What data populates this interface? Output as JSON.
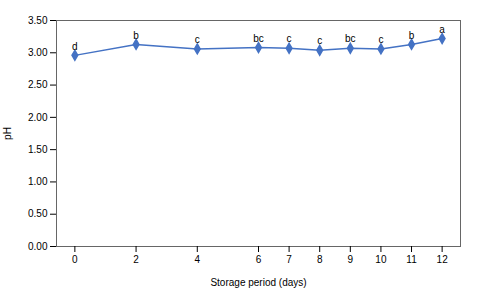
{
  "chart_data": {
    "type": "line",
    "x": [
      0,
      2,
      4,
      6,
      7,
      8,
      9,
      10,
      11,
      12
    ],
    "values": [
      2.96,
      3.13,
      3.06,
      3.08,
      3.07,
      3.04,
      3.07,
      3.06,
      3.13,
      3.22
    ],
    "annotations": [
      "d",
      "b",
      "c",
      "bc",
      "c",
      "c",
      "bc",
      "c",
      "b",
      "a"
    ],
    "xlabel": "Storage period (days)",
    "ylabel": "pH",
    "xlim": [
      -0.6,
      12.6
    ],
    "xticks": [
      0,
      2,
      4,
      6,
      7,
      8,
      9,
      10,
      11,
      12
    ],
    "ylim": [
      0.0,
      3.5
    ],
    "yticks": [
      {
        "value": 0.0,
        "label": "0.00"
      },
      {
        "value": 0.5,
        "label": "0.50"
      },
      {
        "value": 1.0,
        "label": "1.00"
      },
      {
        "value": 1.5,
        "label": "1.50"
      },
      {
        "value": 2.0,
        "label": "2.00"
      },
      {
        "value": 2.5,
        "label": "2.50"
      },
      {
        "value": 3.0,
        "label": "3.00"
      },
      {
        "value": 3.5,
        "label": "3.50"
      }
    ],
    "color": "#4472C4",
    "marker": "diamond",
    "grid": false
  }
}
